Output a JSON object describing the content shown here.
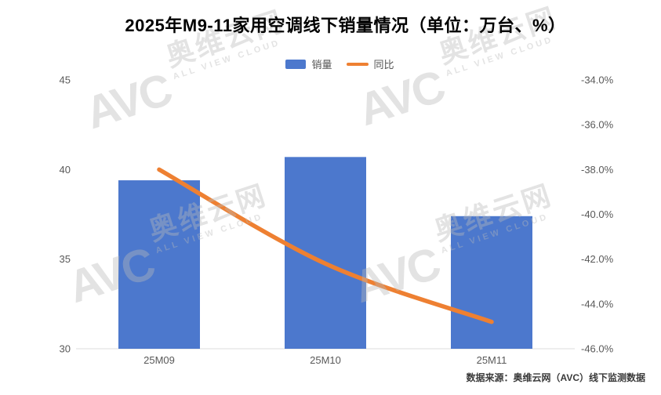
{
  "title": "2025年M9-11家用空调线下销量情况（单位：万台、%）",
  "legend": [
    {
      "label": "销量",
      "type": "bar"
    },
    {
      "label": "同比",
      "type": "line"
    }
  ],
  "source_note": "数据来源：奥维云网（AVC）线下监测数据",
  "watermark": {
    "logo": "AVC",
    "brand": "奥维云网",
    "sub": "ALL VIEW CLOUD"
  },
  "colors": {
    "bar": "#4c78cd",
    "line": "#ee8032",
    "axis_line": "#dcdcdc",
    "tick_text": "#595959",
    "title_text": "#000000",
    "source_text": "#3a3a3a"
  },
  "chart_data": {
    "type": "bar",
    "subtype": "bar+line dual axis",
    "title": "2025年M9-11家用空调线下销量情况（单位：万台、%）",
    "categories": [
      "25M09",
      "25M10",
      "25M11"
    ],
    "series": [
      {
        "name": "销量",
        "type": "bar",
        "axis": "left",
        "unit": "万台",
        "values": [
          39.4,
          40.7,
          37.4
        ]
      },
      {
        "name": "同比",
        "type": "line",
        "axis": "right",
        "unit": "%",
        "values": [
          -38.0,
          -42.2,
          -44.8
        ]
      }
    ],
    "left_axis": {
      "min": 30,
      "max": 45,
      "ticks": [
        45,
        40,
        35,
        30
      ],
      "tick_labels": [
        "45",
        "40",
        "35",
        "30"
      ]
    },
    "right_axis": {
      "min": -46,
      "max": -34,
      "ticks": [
        -34,
        -36,
        -38,
        -40,
        -42,
        -44,
        -46
      ],
      "tick_labels": [
        "-34.0%",
        "-36.0%",
        "-38.0%",
        "-40.0%",
        "-42.0%",
        "-44.0%",
        "-46.0%"
      ]
    },
    "grid": false,
    "legend_position": "top-center"
  }
}
